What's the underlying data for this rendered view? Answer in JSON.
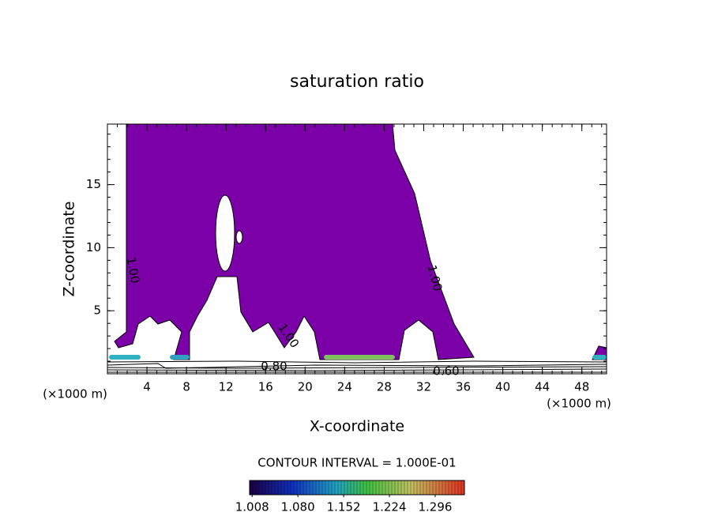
{
  "chart_data": {
    "type": "contour",
    "title": "saturation ratio",
    "xlabel": "X-coordinate",
    "ylabel": "Z-coordinate",
    "x_unit": "(×1000 m)",
    "xlim": [
      0,
      50.5
    ],
    "ylim": [
      0,
      19.8
    ],
    "xticks": [
      4,
      8,
      12,
      16,
      20,
      24,
      28,
      32,
      36,
      40,
      44,
      48
    ],
    "yticks": [
      5,
      10,
      15
    ],
    "fill_color": "#7b00a8",
    "contour_labels": [
      "1.00",
      "1.00",
      "1.00",
      "0.80",
      "0.60"
    ],
    "contour_interval": "CONTOUR INTERVAL = 1.000E-01",
    "colorbar": {
      "lim": [
        1.004,
        1.342
      ],
      "ticks": [
        1.008,
        {
          "value": 1.08,
          "label": "1.080"
        },
        1.152,
        1.224,
        1.296
      ]
    }
  }
}
